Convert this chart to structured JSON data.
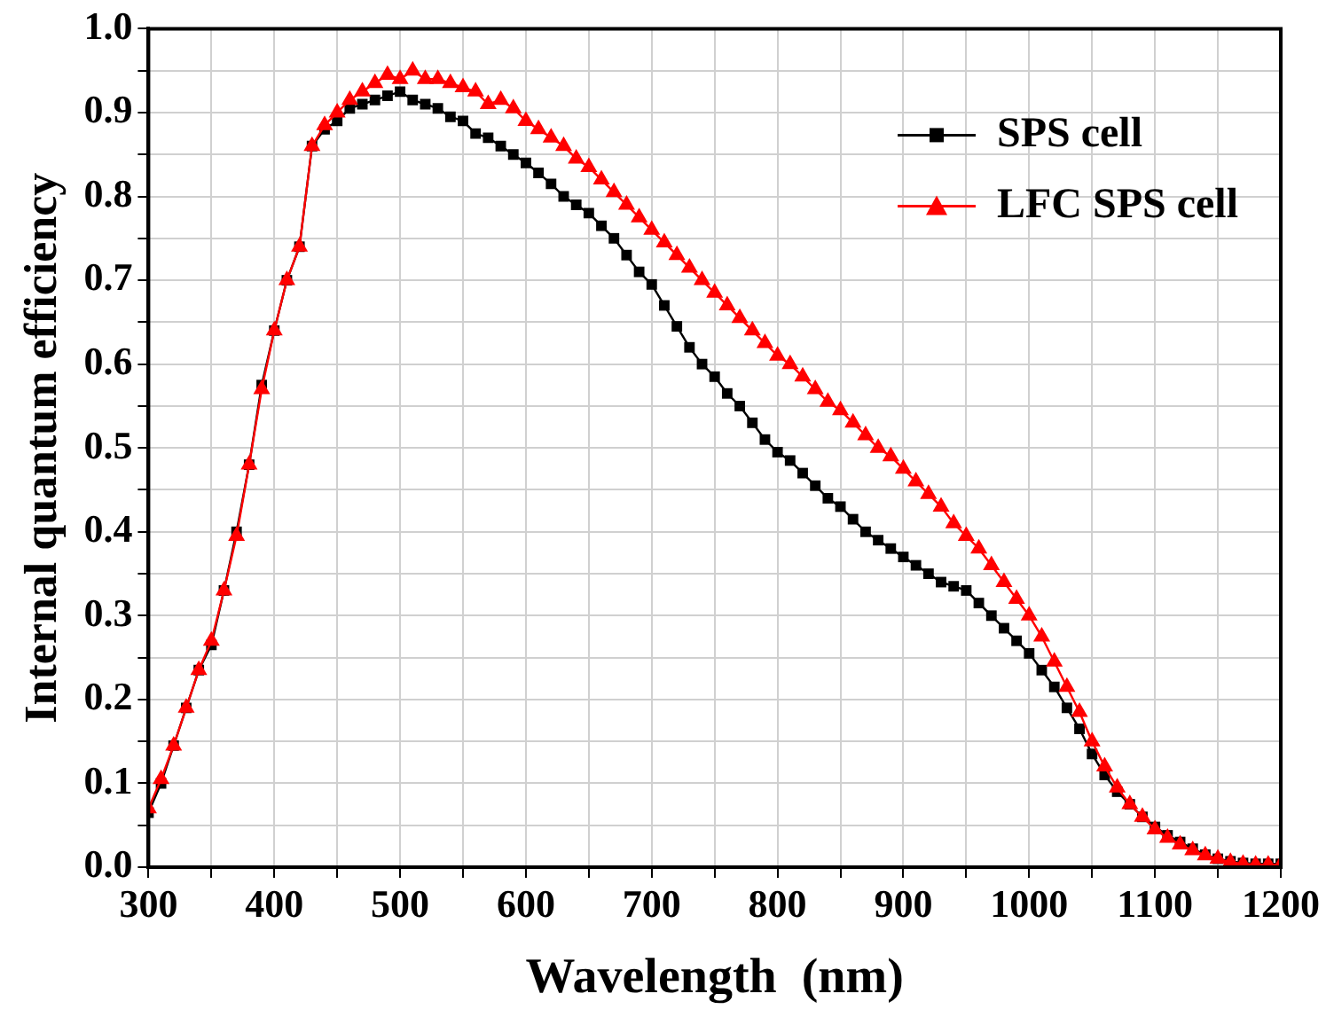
{
  "chart_data": {
    "type": "line",
    "xlabel": "Wavelength  (nm)",
    "ylabel": "Internal quantum efficiency",
    "x": [
      300,
      310,
      320,
      330,
      340,
      350,
      360,
      370,
      380,
      390,
      400,
      410,
      420,
      430,
      440,
      450,
      460,
      470,
      480,
      490,
      500,
      510,
      520,
      530,
      540,
      550,
      560,
      570,
      580,
      590,
      600,
      610,
      620,
      630,
      640,
      650,
      660,
      670,
      680,
      690,
      700,
      710,
      720,
      730,
      740,
      750,
      760,
      770,
      780,
      790,
      800,
      810,
      820,
      830,
      840,
      850,
      860,
      870,
      880,
      890,
      900,
      910,
      920,
      930,
      940,
      950,
      960,
      970,
      980,
      990,
      1000,
      1010,
      1020,
      1030,
      1040,
      1050,
      1060,
      1070,
      1080,
      1090,
      1100,
      1110,
      1120,
      1130,
      1140,
      1150,
      1160,
      1170,
      1180,
      1190,
      1200
    ],
    "series": [
      {
        "name": "SPS cell",
        "color": "#000000",
        "marker": "square",
        "values": [
          0.065,
          0.1,
          0.145,
          0.19,
          0.235,
          0.265,
          0.33,
          0.4,
          0.48,
          0.575,
          0.64,
          0.7,
          0.74,
          0.86,
          0.88,
          0.89,
          0.905,
          0.91,
          0.915,
          0.92,
          0.925,
          0.915,
          0.91,
          0.905,
          0.895,
          0.89,
          0.875,
          0.87,
          0.86,
          0.85,
          0.84,
          0.828,
          0.815,
          0.8,
          0.79,
          0.78,
          0.765,
          0.75,
          0.73,
          0.71,
          0.695,
          0.67,
          0.645,
          0.62,
          0.6,
          0.585,
          0.565,
          0.55,
          0.53,
          0.51,
          0.495,
          0.485,
          0.47,
          0.455,
          0.44,
          0.43,
          0.415,
          0.4,
          0.39,
          0.38,
          0.37,
          0.36,
          0.35,
          0.34,
          0.335,
          0.33,
          0.315,
          0.3,
          0.285,
          0.27,
          0.255,
          0.235,
          0.215,
          0.19,
          0.165,
          0.135,
          0.11,
          0.09,
          0.075,
          0.06,
          0.048,
          0.038,
          0.03,
          0.022,
          0.015,
          0.01,
          0.007,
          0.005,
          0.004,
          0.004,
          0.004
        ]
      },
      {
        "name": "LFC SPS cell",
        "color": "#ff0000",
        "marker": "triangle",
        "values": [
          0.07,
          0.105,
          0.145,
          0.19,
          0.235,
          0.27,
          0.33,
          0.395,
          0.48,
          0.57,
          0.64,
          0.7,
          0.74,
          0.86,
          0.885,
          0.9,
          0.915,
          0.925,
          0.935,
          0.945,
          0.94,
          0.95,
          0.94,
          0.94,
          0.935,
          0.93,
          0.925,
          0.91,
          0.915,
          0.905,
          0.89,
          0.88,
          0.87,
          0.86,
          0.845,
          0.835,
          0.82,
          0.805,
          0.79,
          0.775,
          0.76,
          0.745,
          0.73,
          0.715,
          0.7,
          0.685,
          0.67,
          0.655,
          0.64,
          0.625,
          0.61,
          0.6,
          0.585,
          0.57,
          0.555,
          0.545,
          0.53,
          0.515,
          0.5,
          0.49,
          0.475,
          0.46,
          0.445,
          0.43,
          0.41,
          0.395,
          0.38,
          0.36,
          0.34,
          0.32,
          0.3,
          0.275,
          0.245,
          0.215,
          0.185,
          0.15,
          0.12,
          0.095,
          0.075,
          0.06,
          0.045,
          0.035,
          0.027,
          0.02,
          0.014,
          0.01,
          0.006,
          0.004,
          0.003,
          0.003,
          0.003
        ]
      }
    ],
    "xlim": [
      300,
      1200
    ],
    "xticks": [
      300,
      {
        "value": 350,
        "label": null
      },
      400,
      {
        "value": 450,
        "label": null
      },
      500,
      {
        "value": 550,
        "label": null
      },
      600,
      {
        "value": 650,
        "label": null
      },
      700,
      {
        "value": 750,
        "label": null
      },
      800,
      {
        "value": 850,
        "label": null
      },
      900,
      {
        "value": 950,
        "label": null
      },
      1000,
      {
        "value": 1050,
        "label": null
      },
      1100,
      {
        "value": 1150,
        "label": null
      },
      1200
    ],
    "ylim": [
      0,
      1
    ],
    "yticks": [
      {
        "value": 0,
        "label": "0.0"
      },
      {
        "value": 0.05,
        "label": null
      },
      0.1,
      {
        "value": 0.15,
        "label": null
      },
      0.2,
      {
        "value": 0.25,
        "label": null
      },
      0.3,
      {
        "value": 0.35,
        "label": null
      },
      0.4,
      {
        "value": 0.45,
        "label": null
      },
      0.5,
      {
        "value": 0.55,
        "label": null
      },
      0.6,
      {
        "value": 0.65,
        "label": null
      },
      0.7,
      {
        "value": 0.75,
        "label": null
      },
      0.8,
      {
        "value": 0.85,
        "label": null
      },
      0.9,
      {
        "value": 0.95,
        "label": null
      },
      {
        "value": 1,
        "label": "1.0"
      }
    ],
    "grid": true,
    "legend": "top right"
  }
}
